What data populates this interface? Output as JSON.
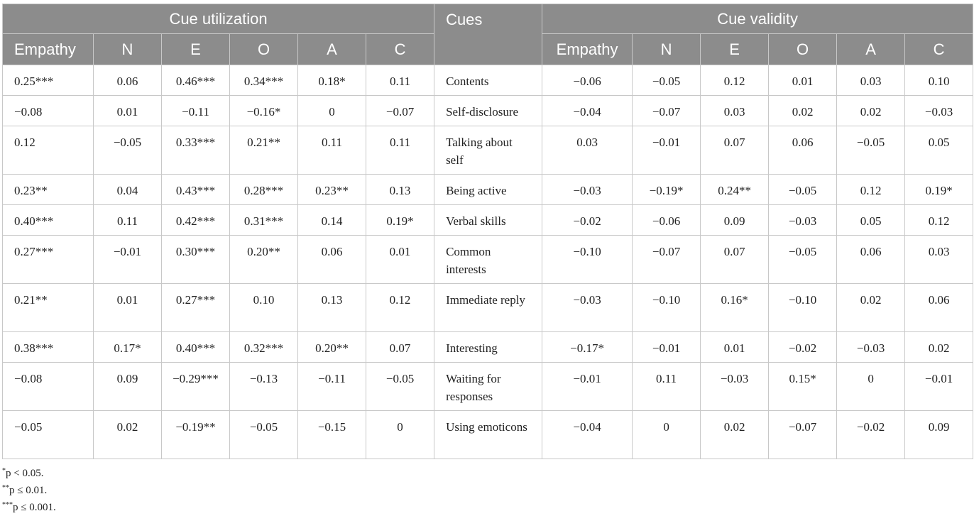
{
  "header": {
    "group_left": "Cue utilization",
    "cues": "Cues",
    "group_right": "Cue validity",
    "columns": [
      "Empathy",
      "N",
      "E",
      "O",
      "A",
      "C"
    ]
  },
  "rows": [
    {
      "cue": "Contents",
      "util": [
        "0.25***",
        "0.06",
        "0.46***",
        "0.34***",
        "0.18*",
        "0.11"
      ],
      "valid": [
        "−0.06",
        "−0.05",
        "0.12",
        "0.01",
        "0.03",
        "0.10"
      ]
    },
    {
      "cue": "Self-disclosure",
      "util": [
        "−0.08",
        "0.01",
        "−0.11",
        "−0.16*",
        "0",
        "−0.07"
      ],
      "valid": [
        "−0.04",
        "−0.07",
        "0.03",
        "0.02",
        "0.02",
        "−0.03"
      ]
    },
    {
      "cue": "Talking about self",
      "util": [
        "0.12",
        "−0.05",
        "0.33***",
        "0.21**",
        "0.11",
        "0.11"
      ],
      "valid": [
        "0.03",
        "−0.01",
        "0.07",
        "0.06",
        "−0.05",
        "0.05"
      ]
    },
    {
      "cue": "Being active",
      "util": [
        "0.23**",
        "0.04",
        "0.43***",
        "0.28***",
        "0.23**",
        "0.13"
      ],
      "valid": [
        "−0.03",
        "−0.19*",
        "0.24**",
        "−0.05",
        "0.12",
        "0.19*"
      ]
    },
    {
      "cue": "Verbal skills",
      "util": [
        "0.40***",
        "0.11",
        "0.42***",
        "0.31***",
        "0.14",
        "0.19*"
      ],
      "valid": [
        "−0.02",
        "−0.06",
        "0.09",
        "−0.03",
        "0.05",
        "0.12"
      ]
    },
    {
      "cue": "Common interests",
      "util": [
        "0.27***",
        "−0.01",
        "0.30***",
        "0.20**",
        "0.06",
        "0.01"
      ],
      "valid": [
        "−0.10",
        "−0.07",
        "0.07",
        "−0.05",
        "0.06",
        "0.03"
      ]
    },
    {
      "cue": "Immediate reply",
      "util": [
        "0.21**",
        "0.01",
        "0.27***",
        "0.10",
        "0.13",
        "0.12"
      ],
      "valid": [
        "−0.03",
        "−0.10",
        "0.16*",
        "−0.10",
        "0.02",
        "0.06"
      ]
    },
    {
      "cue": "Interesting",
      "util": [
        "0.38***",
        "0.17*",
        "0.40***",
        "0.32***",
        "0.20**",
        "0.07"
      ],
      "valid": [
        "−0.17*",
        "−0.01",
        "0.01",
        "−0.02",
        "−0.03",
        "0.02"
      ]
    },
    {
      "cue": "Waiting for responses",
      "util": [
        "−0.08",
        "0.09",
        "−0.29***",
        "−0.13",
        "−0.11",
        "−0.05"
      ],
      "valid": [
        "−0.01",
        "0.11",
        "−0.03",
        "0.15*",
        "0",
        "−0.01"
      ]
    },
    {
      "cue": "Using emoticons",
      "util": [
        "−0.05",
        "0.02",
        "−0.19**",
        "−0.05",
        "−0.15",
        "0"
      ],
      "valid": [
        "−0.04",
        "0",
        "0.02",
        "−0.07",
        "−0.02",
        "0.09"
      ]
    }
  ],
  "notes": [
    {
      "mark": "*",
      "text": "p < 0.05."
    },
    {
      "mark": "**",
      "text": "p ≤ 0.01."
    },
    {
      "mark": "***",
      "text": "p ≤ 0.001."
    }
  ]
}
